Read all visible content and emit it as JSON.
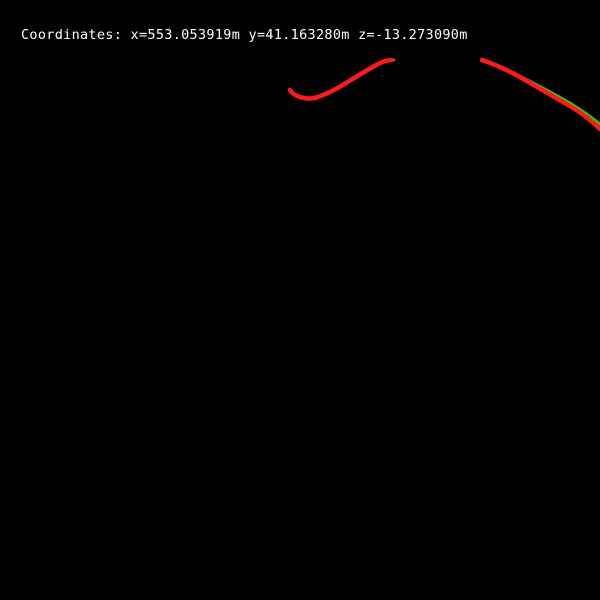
{
  "coordinates_label": "Coordinates: x=553.053919m y=41.163280m z=-13.273090m",
  "colors": {
    "background": "#000000",
    "text": "#ffffff",
    "ground_truth_path": "#22cc22",
    "estimated_path": "#ff1a1a"
  }
}
